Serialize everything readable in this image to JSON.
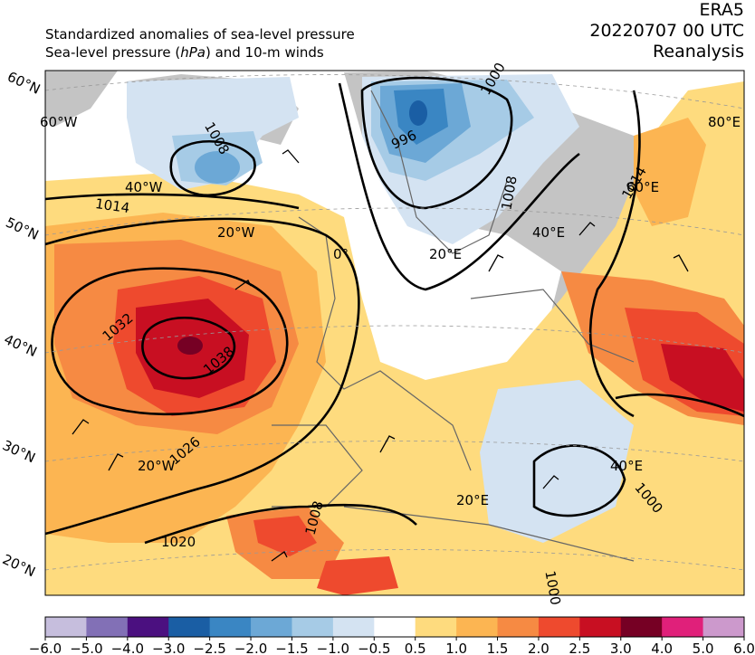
{
  "header": {
    "line1": "Standardized anomalies of sea-level pressure",
    "line2_a": "Sea-level pressure (",
    "line2_unit": "hPa",
    "line2_b": ") and 10-m winds",
    "right1": "ERA5",
    "right2": "20220707 00 UTC",
    "right3": "Reanalysis"
  },
  "map": {
    "lat_labels": [
      "60°N",
      "50°N",
      "40°N",
      "30°N",
      "20°N"
    ],
    "lon_labels": [
      "60°W",
      "40°W",
      "20°W",
      "0°",
      "20°E",
      "40°E",
      "60°E",
      "80°E",
      "20°W",
      "20°E",
      "40°E"
    ],
    "isobar_labels": [
      "1008",
      "1014",
      "996",
      "1000",
      "1008",
      "1014",
      "1032",
      "1038",
      "1026",
      "1020",
      "1008",
      "1000",
      "1000"
    ]
  },
  "colorbar": {
    "ticks": [
      "−6.0",
      "−5.0",
      "−4.0",
      "−3.0",
      "−2.5",
      "−2.0",
      "−1.5",
      "−1.0",
      "−0.5",
      "0.5",
      "1.0",
      "1.5",
      "2.0",
      "2.5",
      "3.0",
      "4.0",
      "5.0",
      "6.0"
    ],
    "colors": [
      "#c6bedd",
      "#8270b6",
      "#4b1080",
      "#1a5ea4",
      "#3a86c3",
      "#6ca8d6",
      "#a6cbe6",
      "#d4e3f2",
      "#ffffff",
      "#fedb7e",
      "#fcb552",
      "#f68a43",
      "#ee4a2e",
      "#c80f22",
      "#760024",
      "#e0207a",
      "#cc99cc"
    ]
  }
}
